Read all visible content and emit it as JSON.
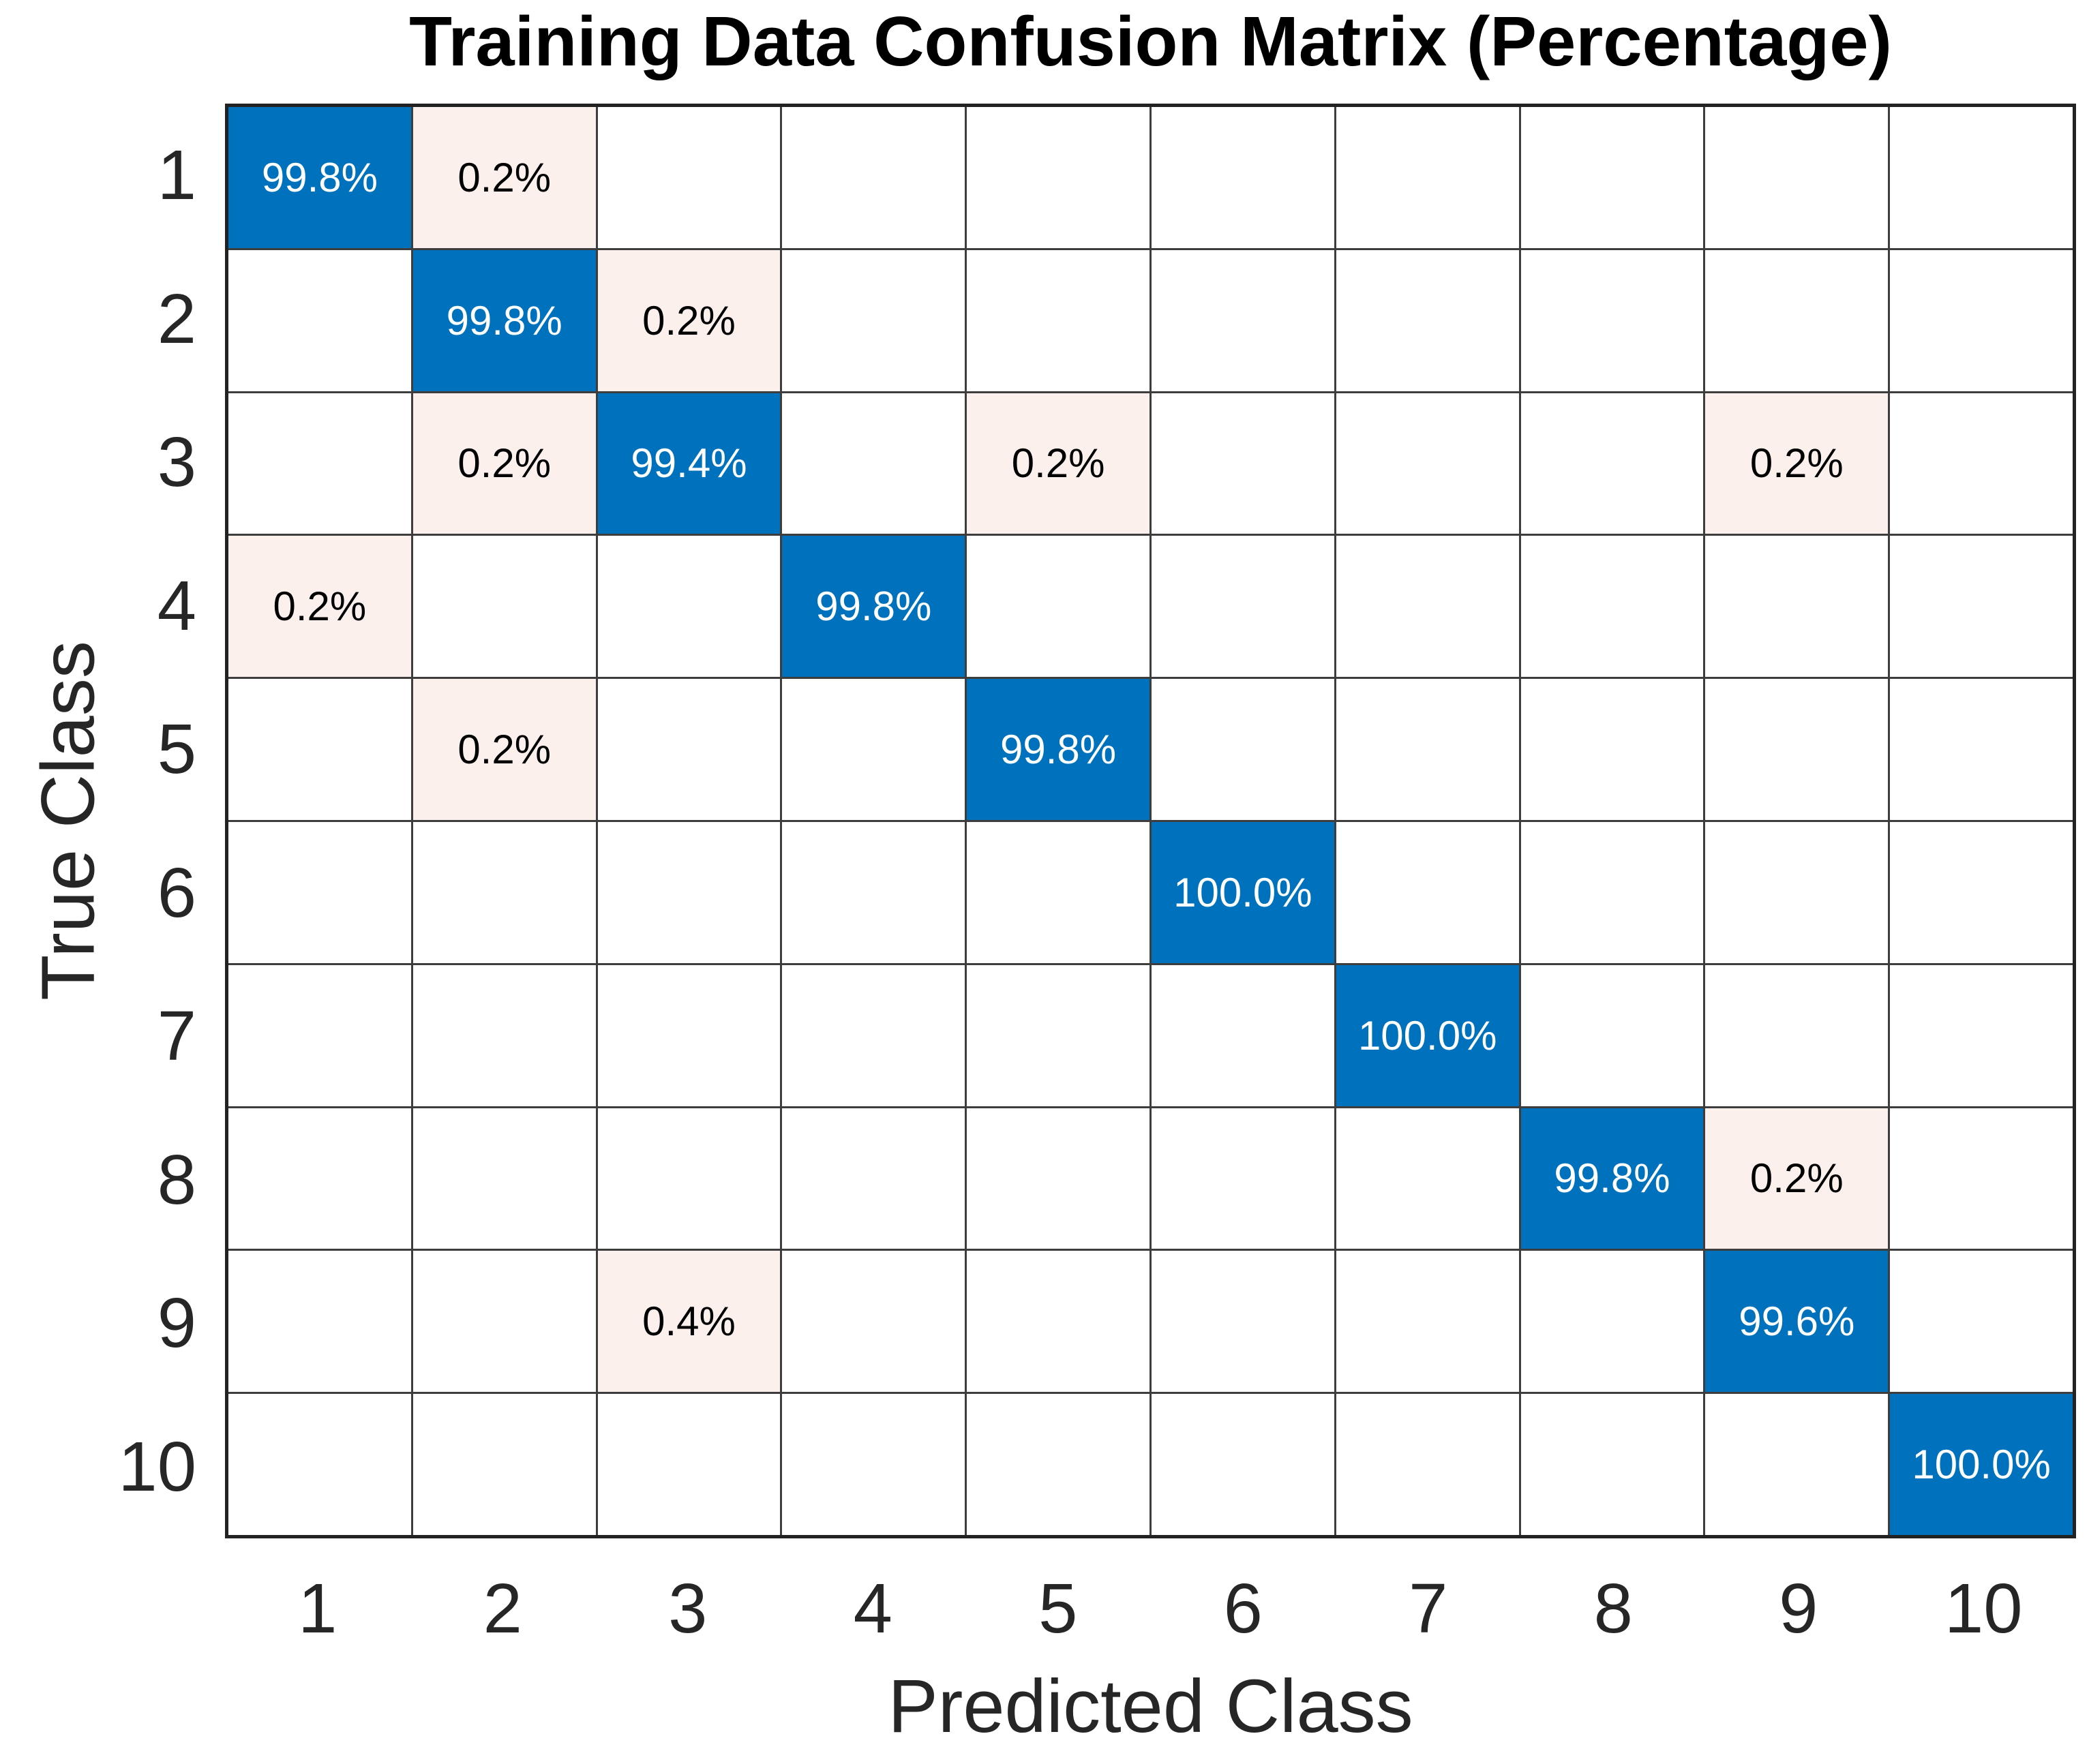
{
  "chart_data": {
    "type": "heatmap",
    "subtype": "confusion-matrix",
    "title": "Training Data Confusion Matrix (Percentage)",
    "xlabel": "Predicted Class",
    "ylabel": "True Class",
    "x_tick_labels": [
      "1",
      "2",
      "3",
      "4",
      "5",
      "6",
      "7",
      "8",
      "9",
      "10"
    ],
    "y_tick_labels": [
      "1",
      "2",
      "3",
      "4",
      "5",
      "6",
      "7",
      "8",
      "9",
      "10"
    ],
    "unit": "%",
    "matrix_percent": [
      [
        99.8,
        0.2,
        0,
        0,
        0,
        0,
        0,
        0,
        0,
        0
      ],
      [
        0,
        99.8,
        0.2,
        0,
        0,
        0,
        0,
        0,
        0,
        0
      ],
      [
        0,
        0.2,
        99.4,
        0,
        0.2,
        0,
        0,
        0,
        0.2,
        0
      ],
      [
        0.2,
        0,
        0,
        99.8,
        0,
        0,
        0,
        0,
        0,
        0
      ],
      [
        0,
        0.2,
        0,
        0,
        99.8,
        0,
        0,
        0,
        0,
        0
      ],
      [
        0,
        0,
        0,
        0,
        0,
        100.0,
        0,
        0,
        0,
        0
      ],
      [
        0,
        0,
        0,
        0,
        0,
        0,
        100.0,
        0,
        0,
        0
      ],
      [
        0,
        0,
        0,
        0,
        0,
        0,
        0,
        99.8,
        0.2,
        0
      ],
      [
        0,
        0,
        0.4,
        0,
        0,
        0,
        0,
        0,
        99.6,
        0
      ],
      [
        0,
        0,
        0,
        0,
        0,
        0,
        0,
        0,
        0,
        100.0
      ]
    ],
    "cell_labels": [
      [
        "99.8%",
        "0.2%",
        "",
        "",
        "",
        "",
        "",
        "",
        "",
        ""
      ],
      [
        "",
        "99.8%",
        "0.2%",
        "",
        "",
        "",
        "",
        "",
        "",
        ""
      ],
      [
        "",
        "0.2%",
        "99.4%",
        "",
        "0.2%",
        "",
        "",
        "",
        "0.2%",
        ""
      ],
      [
        "0.2%",
        "",
        "",
        "99.8%",
        "",
        "",
        "",
        "",
        "",
        ""
      ],
      [
        "",
        "0.2%",
        "",
        "",
        "99.8%",
        "",
        "",
        "",
        "",
        ""
      ],
      [
        "",
        "",
        "",
        "",
        "",
        "100.0%",
        "",
        "",
        "",
        ""
      ],
      [
        "",
        "",
        "",
        "",
        "",
        "",
        "100.0%",
        "",
        "",
        ""
      ],
      [
        "",
        "",
        "",
        "",
        "",
        "",
        "",
        "99.8%",
        "0.2%",
        ""
      ],
      [
        "",
        "",
        "0.4%",
        "",
        "",
        "",
        "",
        "",
        "99.6%",
        ""
      ],
      [
        "",
        "",
        "",
        "",
        "",
        "",
        "",
        "",
        "",
        "100.0%"
      ]
    ],
    "colors": {
      "diagonal_fill": "#0072BD",
      "off_diagonal_fill": "#FBF0EC",
      "empty_fill": "#FFFFFF",
      "diagonal_text": "#FFFFFF",
      "off_diagonal_text": "#000000",
      "grid_line": "#3d3d3d",
      "axis_border": "#222222",
      "tick_label_color": "#262626",
      "title_color": "#000000"
    },
    "layout": {
      "grid_on": true,
      "legend": "none",
      "x_axis_position": "bottom",
      "y_axis_position": "left"
    }
  }
}
